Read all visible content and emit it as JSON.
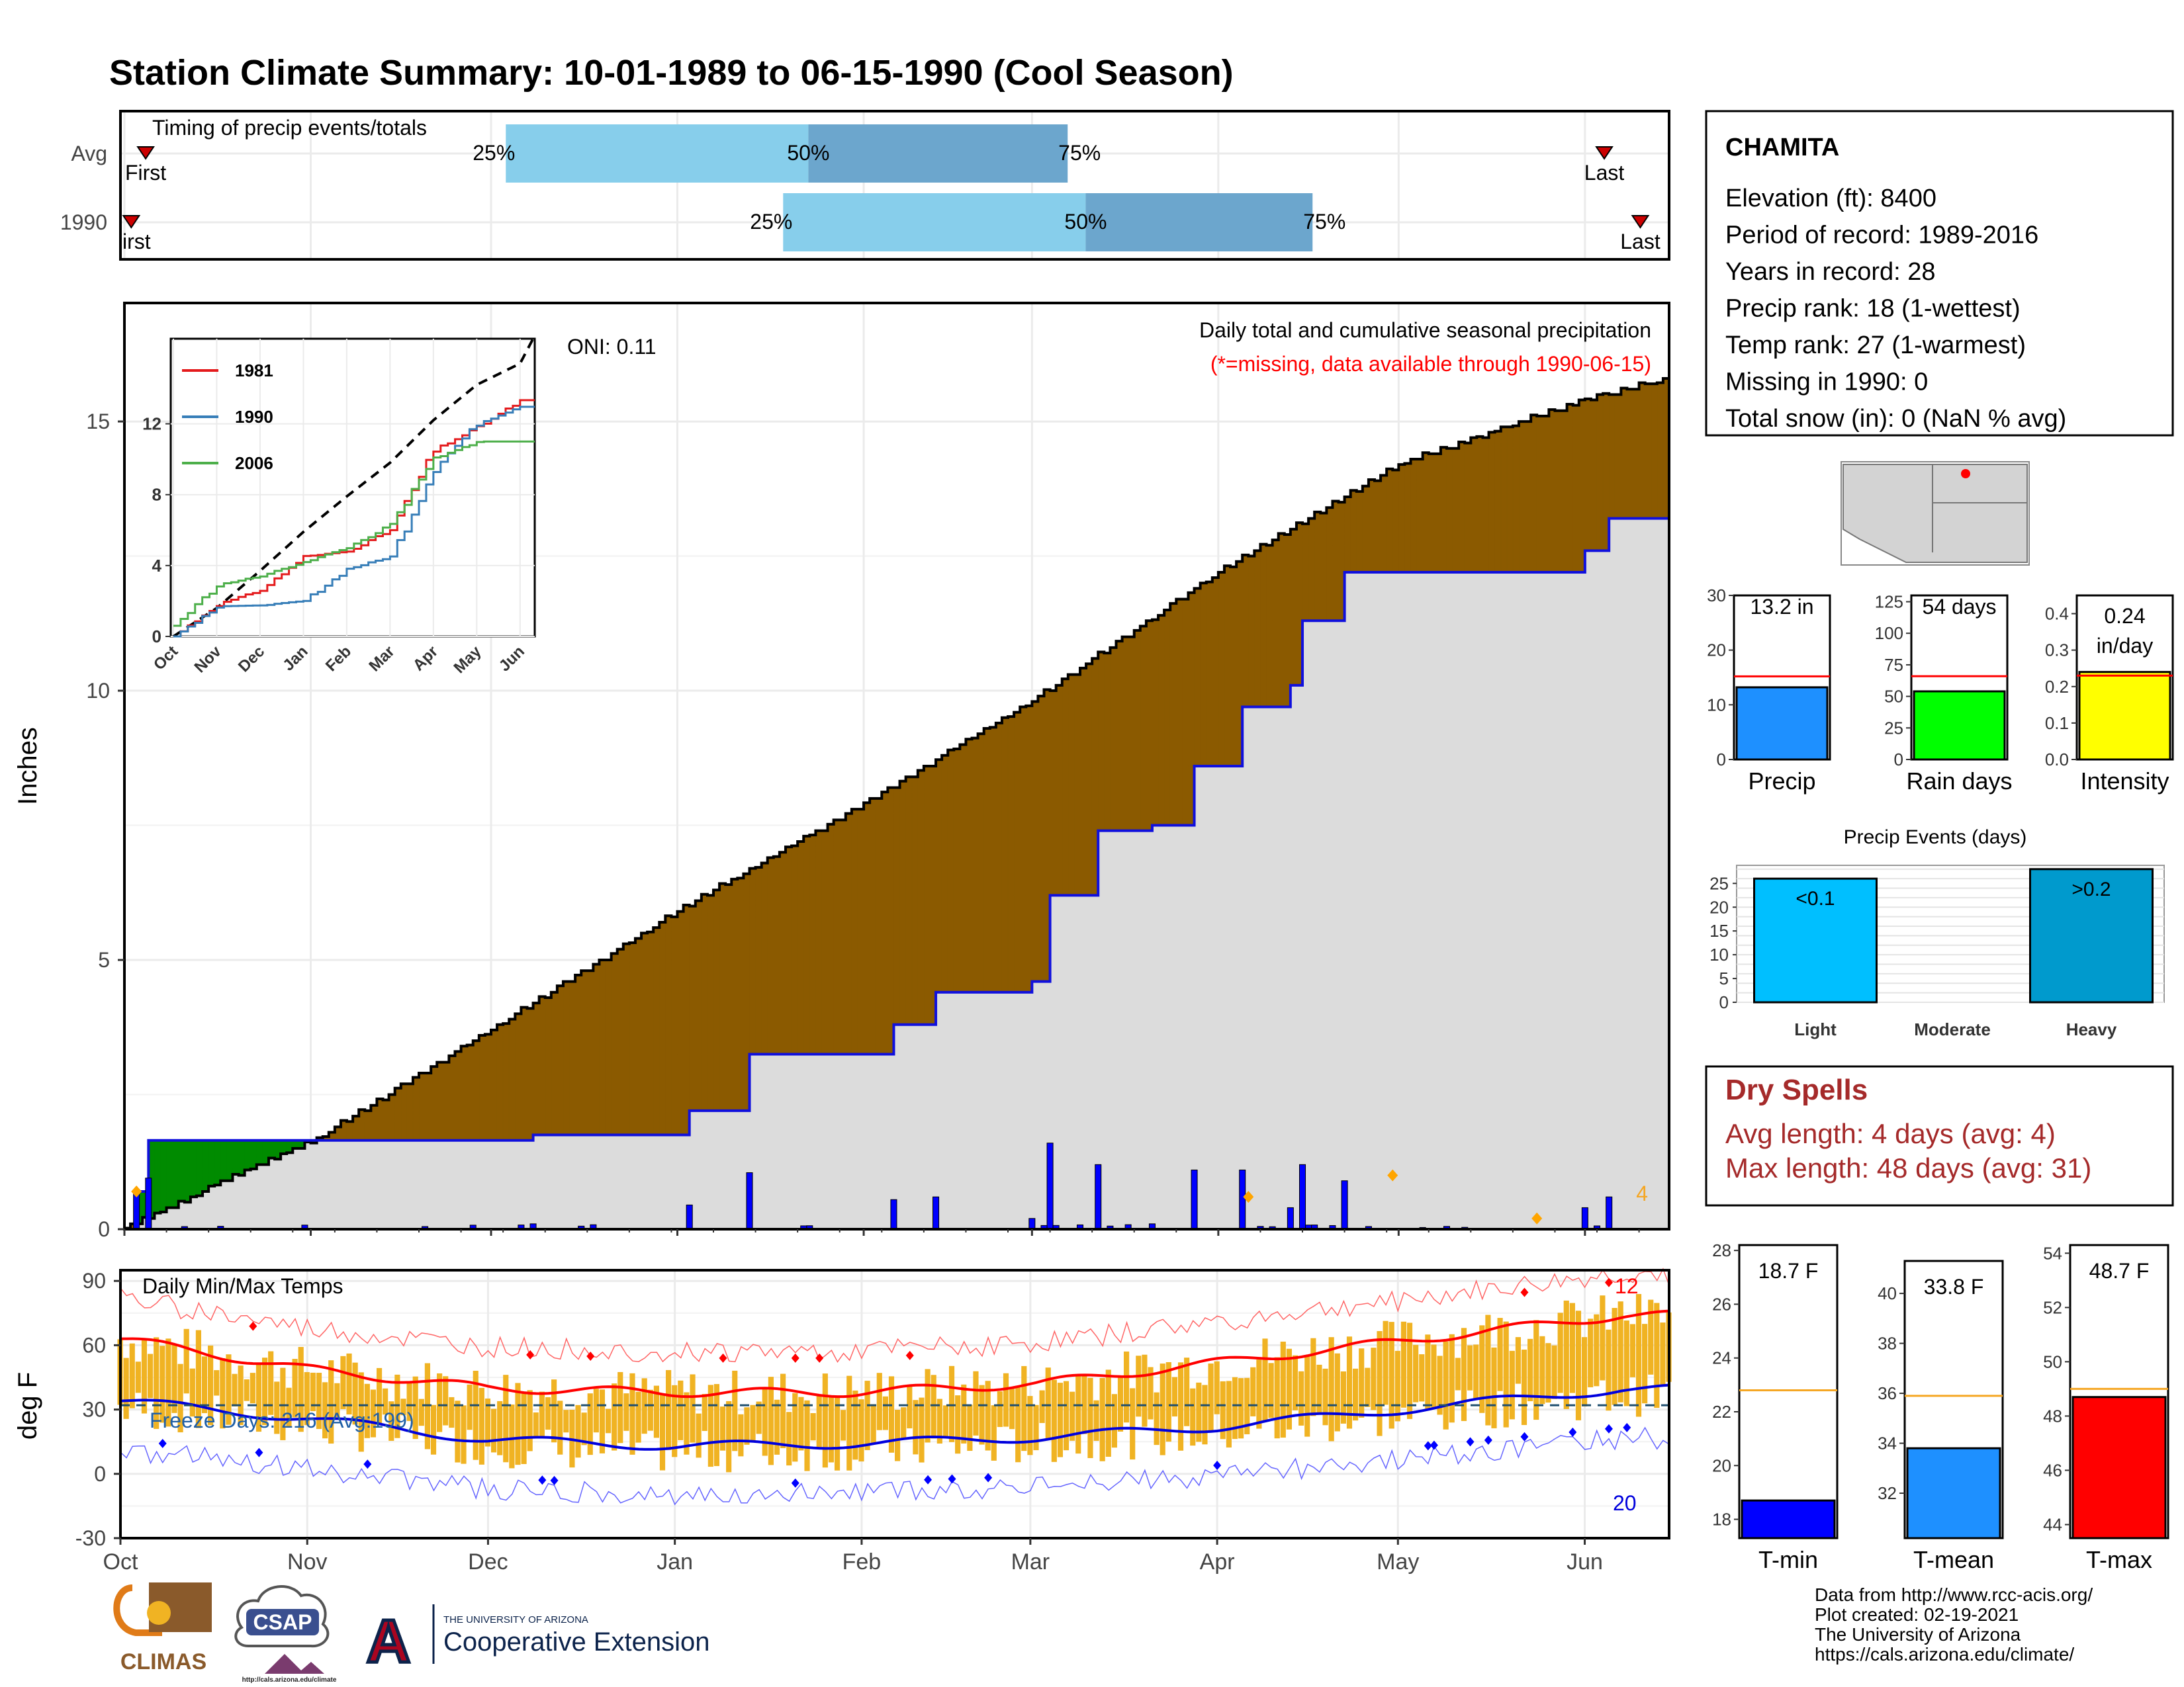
{
  "title": "Station Climate Summary: 10-01-1989 to 06-15-1990 (Cool Season)",
  "colors": {
    "title": "#2b3f88",
    "precip_bar_light": "#87ceeb",
    "precip_bar_dark": "#6ca6cd",
    "cumulative_current_fill": "#dcdcdc",
    "surplus_fill": "#008b00",
    "deficit_fill": "#8b5a00",
    "daily_bar": "#0000ff",
    "temp_range": "#f0b323",
    "max_line": "#ff0000",
    "min_line": "#0000dd",
    "dry_spells": "#a52a2a",
    "avg_line": "#f5a623"
  },
  "timing": {
    "label": "Timing of precip events/totals",
    "rows": [
      {
        "name": "Avg",
        "first_label": "First",
        "last_label": "Last",
        "p25": "25%",
        "p50": "50%",
        "p75": "75%",
        "first_day": 7,
        "p25_day": 107,
        "p50_day": 191,
        "p75_day": 263,
        "last_day": 412
      },
      {
        "name": "1990",
        "first_label": "irst",
        "last_label": "Last",
        "p25": "25%",
        "p50": "50%",
        "p75": "75%",
        "first_day": 3,
        "p25_day": 184,
        "p50_day": 268,
        "p75_day": 331,
        "last_day": 422
      }
    ]
  },
  "precip_panel": {
    "ylabel": "Inches",
    "legend_title": "Daily total and cumulative seasonal precipitation",
    "missing_note": "(*=missing, data available through 1990-06-15)",
    "oni": "ONI: 0.11",
    "corner_count": "4",
    "y_ticks": [
      "0",
      "5",
      "10",
      "15"
    ],
    "x_ticks": [
      "Oct",
      "Nov",
      "Dec",
      "Jan",
      "Feb",
      "Mar",
      "Apr",
      "May",
      "Jun"
    ]
  },
  "inset": {
    "y_ticks": [
      "0",
      "4",
      "8",
      "12"
    ],
    "x_ticks": [
      "Oct",
      "Nov",
      "Dec",
      "Jan",
      "Feb",
      "Mar",
      "Apr",
      "May",
      "Jun"
    ],
    "legend": [
      {
        "name": "1981",
        "color": "#e41a1c"
      },
      {
        "name": "1990",
        "color": "#377eb8"
      },
      {
        "name": "2006",
        "color": "#4daf4a"
      }
    ]
  },
  "temp_panel": {
    "ylabel": "deg F",
    "title": "Daily Min/Max Temps",
    "freeze_days": "Freeze Days: 216 (Avg:199)",
    "hot_count": "12",
    "cold_count": "20",
    "y_ticks": [
      "-30",
      "0",
      "30",
      "60",
      "90"
    ],
    "x_ticks": [
      "Oct",
      "Nov",
      "Dec",
      "Jan",
      "Feb",
      "Mar",
      "Apr",
      "May",
      "Jun"
    ]
  },
  "station": {
    "name": "CHAMITA",
    "lines": [
      "Elevation (ft): 8400",
      "Period of record: 1989-2016",
      "Years in record: 28",
      "Precip rank: 18 (1-wettest)",
      "Temp rank: 27 (1-warmest)",
      "Missing in 1990: 0",
      "Total snow (in): 0 (NaN % avg)"
    ]
  },
  "mini_precip": [
    {
      "label": "Precip",
      "value_text": "13.2 in",
      "value": 13.2,
      "avg": 15.2,
      "ymax": 30,
      "ticks": [
        "0",
        "10",
        "20",
        "30"
      ],
      "color": "#1e90ff"
    },
    {
      "label": "Rain days",
      "value_text": "54 days",
      "value": 54,
      "avg": 66,
      "ymax": 130,
      "ticks": [
        "0",
        "25",
        "50",
        "75",
        "100",
        "125"
      ],
      "color": "#00ff00"
    },
    {
      "label": "Intensity",
      "value_text": "0.24 in/day",
      "value_line1": "0.24",
      "value_line2": "in/day",
      "value": 0.24,
      "avg": 0.23,
      "ymax": 0.45,
      "ticks": [
        "0.0",
        "0.1",
        "0.2",
        "0.3",
        "0.4"
      ],
      "color": "#ffff00"
    }
  ],
  "precip_events": {
    "title": "Precip Events (days)",
    "ticks": [
      "0",
      "5",
      "10",
      "15",
      "20",
      "25"
    ],
    "bars": [
      {
        "category": "Light",
        "label": "<0.1",
        "value": 26,
        "color": "#00bfff"
      },
      {
        "category": "Moderate",
        "label": "",
        "value": 0,
        "color": "#1e90ff"
      },
      {
        "category": "Heavy",
        "label": ">0.2",
        "value": 28,
        "color": "#009acd"
      }
    ]
  },
  "dry_spells": {
    "title": "Dry Spells",
    "avg_line": "Avg length: 4 days (avg: 4)",
    "max_line": "Max length: 48 days (avg: 31)"
  },
  "mini_temp": [
    {
      "label": "T-min",
      "value_text": "18.7 F",
      "value": 18.7,
      "avg": 22.8,
      "ymin": 17.3,
      "ymax": 28.2,
      "ticks": [
        "18",
        "20",
        "22",
        "24",
        "26",
        "28"
      ],
      "color": "#0000ff"
    },
    {
      "label": "T-mean",
      "value_text": "33.8 F",
      "value": 33.8,
      "avg": 35.9,
      "ymin": 30.2,
      "ymax": 41.3,
      "ticks": [
        "32",
        "34",
        "36",
        "38",
        "40"
      ],
      "color": "#1e90ff"
    },
    {
      "label": "T-max",
      "value_text": "48.7 F",
      "value": 48.7,
      "avg": 49.0,
      "ymin": 43.5,
      "ymax": 54.3,
      "ticks": [
        "44",
        "46",
        "48",
        "50",
        "52",
        "54"
      ],
      "color": "#ff0000"
    }
  ],
  "footer": {
    "lines": [
      "Data from http://www.rcc-acis.org/",
      "Plot created: 02-19-2021",
      "The University of Arizona",
      "https://cals.arizona.edu/climate/"
    ],
    "climas": "CLIMAS",
    "csap": "CSAP",
    "csap_url": "http://cals.arizona.edu/climate",
    "ua_small": "THE UNIVERSITY OF ARIZONA",
    "ua_big": "Cooperative Extension",
    "ua_letter": "A"
  },
  "chart_data": [
    {
      "type": "area",
      "title": "Daily total and cumulative seasonal precipitation",
      "ylabel": "Inches",
      "ylim": [
        0,
        17.2
      ],
      "x_range": [
        "1989-10-01",
        "1990-06-15"
      ],
      "series": [
        {
          "name": "average cumulative",
          "x": [
            "1989-10-01",
            "1989-10-15",
            "1989-11-01",
            "1989-12-01",
            "1990-01-01",
            "1990-02-01",
            "1990-03-01",
            "1990-04-01",
            "1990-05-01",
            "1990-06-01",
            "1990-06-15"
          ],
          "values": [
            0,
            0.75,
            1.6,
            3.7,
            5.9,
            7.9,
            9.8,
            12.2,
            14.2,
            15.4,
            15.8
          ]
        },
        {
          "name": "1990 cumulative",
          "x": [
            "1989-10-01",
            "1989-10-03",
            "1989-10-05",
            "1989-12-08",
            "1990-01-01",
            "1990-01-03",
            "1990-01-13",
            "1990-02-06",
            "1990-02-13",
            "1990-03-01",
            "1990-03-04",
            "1990-03-12",
            "1990-03-21",
            "1990-03-28",
            "1990-04-05",
            "1990-04-13",
            "1990-04-15",
            "1990-04-22",
            "1990-06-01",
            "1990-06-05",
            "1990-06-15"
          ],
          "values": [
            0,
            0.7,
            1.65,
            1.75,
            1.75,
            2.2,
            3.25,
            3.8,
            4.4,
            4.6,
            6.2,
            7.4,
            7.5,
            8.6,
            9.7,
            10.1,
            11.3,
            12.2,
            12.6,
            13.2,
            13.2
          ]
        }
      ]
    },
    {
      "type": "line",
      "title": "",
      "x": [
        "Oct",
        "Nov",
        "Dec",
        "Jan",
        "Feb",
        "Mar",
        "Apr",
        "May",
        "Jun"
      ],
      "ylim": [
        0,
        15
      ],
      "series": [
        {
          "name": "1981",
          "values": [
            0,
            1.8,
            2.6,
            4.5,
            4.8,
            6.0,
            10.5,
            11.8,
            13.3
          ]
        },
        {
          "name": "1990",
          "values": [
            0,
            1.7,
            1.75,
            2.0,
            3.8,
            4.5,
            9.5,
            12.0,
            13.0
          ]
        },
        {
          "name": "2006",
          "values": [
            0.6,
            2.9,
            3.4,
            4.2,
            5.0,
            6.3,
            10.0,
            11.0,
            11.0
          ]
        }
      ]
    },
    {
      "type": "line",
      "title": "Daily Min/Max Temps",
      "ylabel": "deg F",
      "ylim": [
        -30,
        95
      ],
      "x": [
        "Oct",
        "Nov",
        "Dec",
        "Jan",
        "Feb",
        "Mar",
        "Apr",
        "May",
        "Jun"
      ],
      "series": [
        {
          "name": "avg max",
          "values": [
            63,
            49,
            40,
            38,
            38,
            42,
            52,
            62,
            72
          ]
        },
        {
          "name": "avg min",
          "values": [
            34,
            26,
            16,
            13,
            14,
            17,
            22,
            30,
            38
          ]
        }
      ]
    },
    {
      "type": "bar",
      "title": "Precip Events (days)",
      "categories": [
        "Light",
        "Moderate",
        "Heavy"
      ],
      "values": [
        26,
        0,
        28
      ]
    }
  ]
}
